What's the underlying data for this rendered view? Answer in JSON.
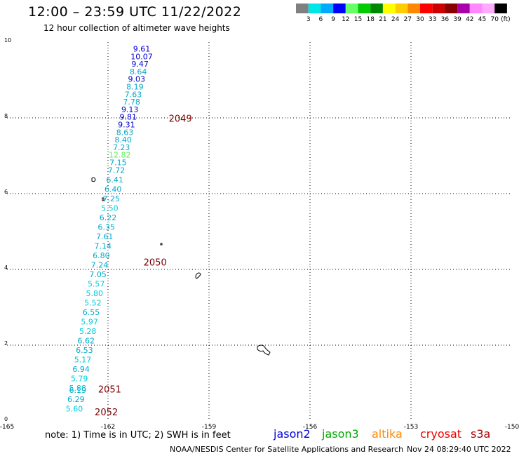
{
  "header": {
    "title": "12:00 – 23:59 UTC 11/22/2022",
    "subtitle": "12 hour collection of altimeter wave heights"
  },
  "legend": {
    "labels": [
      "3",
      "6",
      "9",
      "12",
      "15",
      "18",
      "21",
      "24",
      "27",
      "30",
      "33",
      "36",
      "39",
      "42",
      "45",
      "70"
    ],
    "colors": [
      "#808080",
      "#00e5e5",
      "#00aaff",
      "#0000ff",
      "#66ff66",
      "#00cc00",
      "#008800",
      "#ffff00",
      "#ffcc00",
      "#ff8800",
      "#ff0000",
      "#cc0000",
      "#880000",
      "#aa00aa",
      "#ff88ff",
      "#ffaaff",
      "#000000"
    ],
    "unit": "(ft)"
  },
  "footer": {
    "note": "note: 1) Time is in UTC; 2) SWH is in feet",
    "credit": "NOAA/NESDIS Center for Satellite Applications and Research",
    "timestamp": "Nov 24 08:29:40 UTC 2022",
    "satellites": [
      {
        "name": "jason2",
        "color": "#0000dd"
      },
      {
        "name": "jason3",
        "color": "#00aa00"
      },
      {
        "name": "altika",
        "color": "#ff8800"
      },
      {
        "name": "cryosat",
        "color": "#ee0000"
      },
      {
        "name": "s3a",
        "color": "#aa0000"
      }
    ]
  },
  "chart_data": {
    "type": "scatter",
    "title": "12:00 – 23:59 UTC 11/22/2022",
    "xlim": [
      -165,
      -150
    ],
    "ylim": [
      0,
      10
    ],
    "x_ticks": [
      "-165",
      "-162",
      "-159",
      "-156",
      "-153",
      "-150"
    ],
    "y_ticks": [
      "0",
      "2",
      "4",
      "6",
      "8",
      "10"
    ],
    "grid": true,
    "points": [
      {
        "x": -161.0,
        "y": 9.75,
        "v": "9.61",
        "color": "#0000cc"
      },
      {
        "x": -161.0,
        "y": 9.55,
        "v": "10.07",
        "color": "#0000cc"
      },
      {
        "x": -161.05,
        "y": 9.35,
        "v": "9.47",
        "color": "#0000cc"
      },
      {
        "x": -161.1,
        "y": 9.15,
        "v": "8.64",
        "color": "#00aacc"
      },
      {
        "x": -161.15,
        "y": 8.95,
        "v": "9.03",
        "color": "#0000cc"
      },
      {
        "x": -161.2,
        "y": 8.75,
        "v": "8.19",
        "color": "#00aacc"
      },
      {
        "x": -161.25,
        "y": 8.55,
        "v": "7.63",
        "color": "#00aacc"
      },
      {
        "x": -161.3,
        "y": 8.35,
        "v": "7.78",
        "color": "#00aacc"
      },
      {
        "x": -161.35,
        "y": 8.15,
        "v": "9.13",
        "color": "#0000cc"
      },
      {
        "x": -161.4,
        "y": 7.95,
        "v": "9.81",
        "color": "#0000cc"
      },
      {
        "x": -161.45,
        "y": 7.75,
        "v": "9.31",
        "color": "#0000cc"
      },
      {
        "x": -161.5,
        "y": 7.55,
        "v": "8.63",
        "color": "#00aacc"
      },
      {
        "x": -161.55,
        "y": 7.35,
        "v": "8.40",
        "color": "#00aacc"
      },
      {
        "x": -161.6,
        "y": 7.15,
        "v": "7.23",
        "color": "#00aacc"
      },
      {
        "x": -161.65,
        "y": 6.95,
        "v": "12.82",
        "color": "#66ee66"
      },
      {
        "x": -161.7,
        "y": 6.75,
        "v": "7.15",
        "color": "#00aacc"
      },
      {
        "x": -161.75,
        "y": 6.55,
        "v": "7.72",
        "color": "#00aacc"
      },
      {
        "x": -161.8,
        "y": 6.3,
        "v": "6.41",
        "color": "#00aacc"
      },
      {
        "x": -161.85,
        "y": 6.05,
        "v": "6.40",
        "color": "#00aacc"
      },
      {
        "x": -161.9,
        "y": 5.8,
        "v": "7.25",
        "color": "#00aacc"
      },
      {
        "x": -161.95,
        "y": 5.55,
        "v": "5.50",
        "color": "#00ccdd"
      },
      {
        "x": -162.0,
        "y": 5.3,
        "v": "6.22",
        "color": "#00aacc"
      },
      {
        "x": -162.05,
        "y": 5.05,
        "v": "6.35",
        "color": "#00aacc"
      },
      {
        "x": -162.1,
        "y": 4.8,
        "v": "7.61",
        "color": "#00aacc"
      },
      {
        "x": -162.15,
        "y": 4.55,
        "v": "7.14",
        "color": "#00aacc"
      },
      {
        "x": -162.2,
        "y": 4.3,
        "v": "6.80",
        "color": "#00aacc"
      },
      {
        "x": -162.25,
        "y": 4.05,
        "v": "7.24",
        "color": "#00aacc"
      },
      {
        "x": -162.3,
        "y": 3.8,
        "v": "7.05",
        "color": "#00aacc"
      },
      {
        "x": -162.35,
        "y": 3.55,
        "v": "5.57",
        "color": "#00ccdd"
      },
      {
        "x": -162.4,
        "y": 3.3,
        "v": "5.80",
        "color": "#00ccdd"
      },
      {
        "x": -162.45,
        "y": 3.05,
        "v": "5.52",
        "color": "#00ccdd"
      },
      {
        "x": -162.5,
        "y": 2.8,
        "v": "6.55",
        "color": "#00aacc"
      },
      {
        "x": -162.55,
        "y": 2.55,
        "v": "5.97",
        "color": "#00ccdd"
      },
      {
        "x": -162.6,
        "y": 2.3,
        "v": "5.28",
        "color": "#00ccdd"
      },
      {
        "x": -162.65,
        "y": 2.05,
        "v": "6.62",
        "color": "#00aacc"
      },
      {
        "x": -162.7,
        "y": 1.8,
        "v": "6.53",
        "color": "#00aacc"
      },
      {
        "x": -162.75,
        "y": 1.55,
        "v": "5.17",
        "color": "#00ccdd"
      },
      {
        "x": -162.8,
        "y": 1.3,
        "v": "6.94",
        "color": "#00aacc"
      },
      {
        "x": -162.85,
        "y": 1.05,
        "v": "5.79",
        "color": "#00ccdd"
      },
      {
        "x": -162.9,
        "y": 0.8,
        "v": "5.88",
        "color": "#00ccdd"
      },
      {
        "x": -162.9,
        "y": 0.74,
        "v": "6.19",
        "color": "#00aacc"
      },
      {
        "x": -162.95,
        "y": 0.5,
        "v": "6.29",
        "color": "#00aacc"
      },
      {
        "x": -163.0,
        "y": 0.25,
        "v": "5.60",
        "color": "#00ccdd"
      }
    ],
    "track_labels": [
      {
        "x": -159.85,
        "y": 7.9,
        "v": "2049"
      },
      {
        "x": -160.6,
        "y": 4.1,
        "v": "2050"
      },
      {
        "x": -161.95,
        "y": 0.75,
        "v": "2051"
      },
      {
        "x": -162.05,
        "y": 0.15,
        "v": "2052"
      }
    ]
  }
}
